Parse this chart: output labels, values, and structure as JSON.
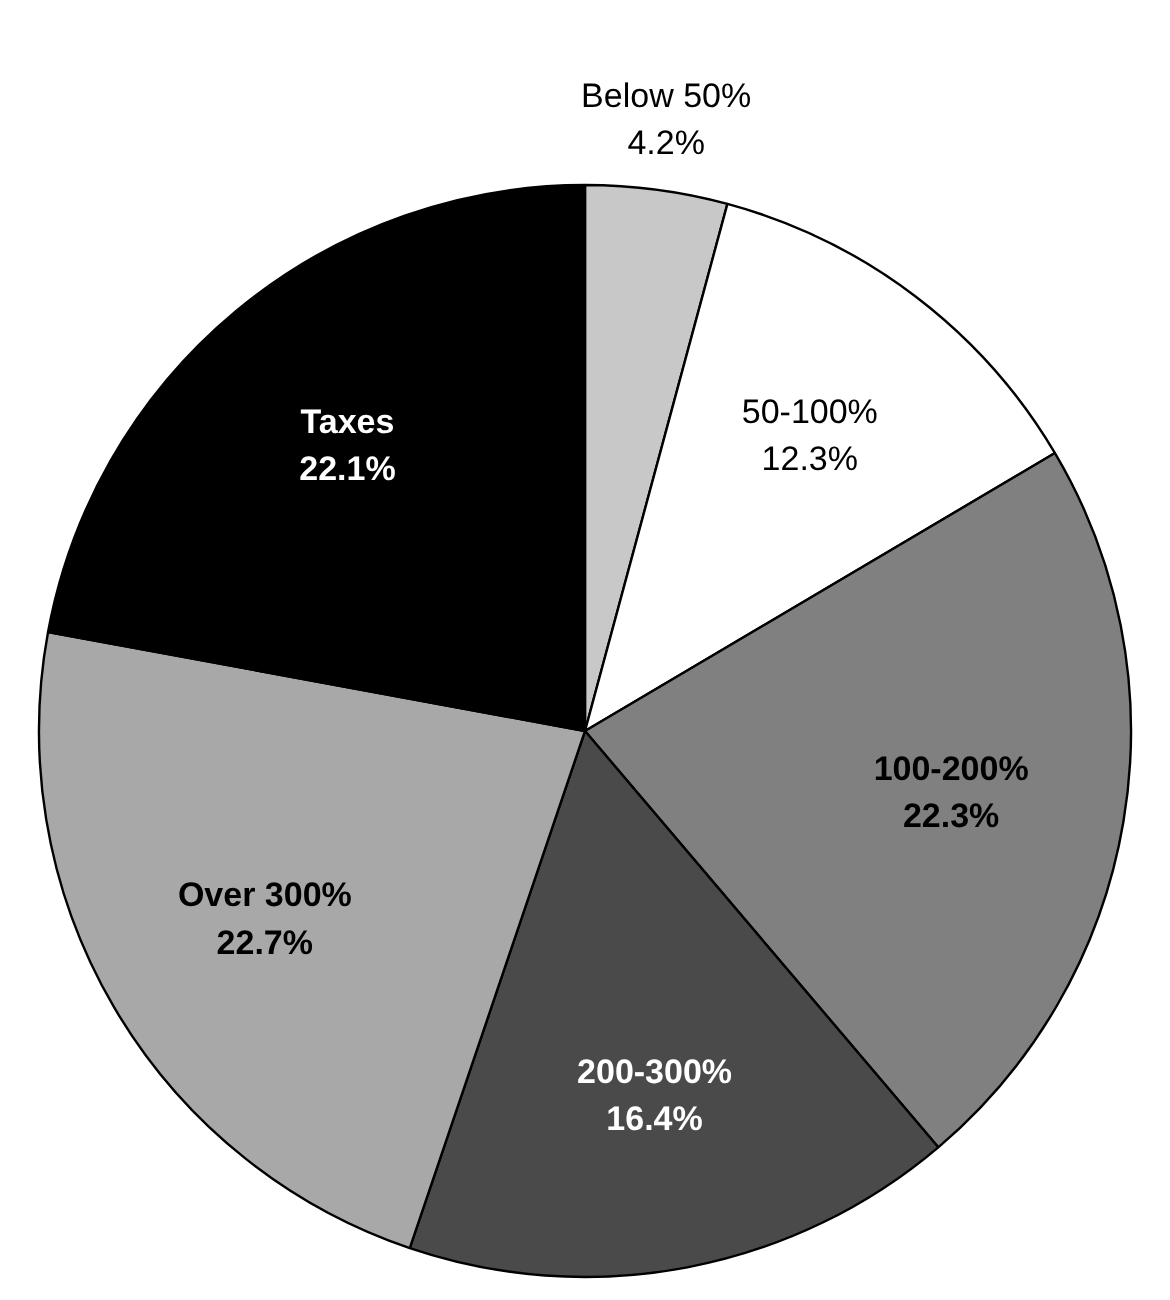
{
  "chart_data": {
    "type": "pie",
    "categories": [
      "Below 50%",
      "50-100%",
      "100-200%",
      "200-300%",
      "Over 300%",
      "Taxes"
    ],
    "values": [
      4.2,
      12.3,
      22.3,
      16.4,
      22.7,
      22.1
    ],
    "value_labels": [
      "4.2%",
      "12.3%",
      "22.3%",
      "16.4%",
      "22.7%",
      "22.1%"
    ],
    "colors": [
      "#c8c8c8",
      "#ffffff",
      "#808080",
      "#4a4a4a",
      "#a8a8a8",
      "#000000"
    ]
  }
}
